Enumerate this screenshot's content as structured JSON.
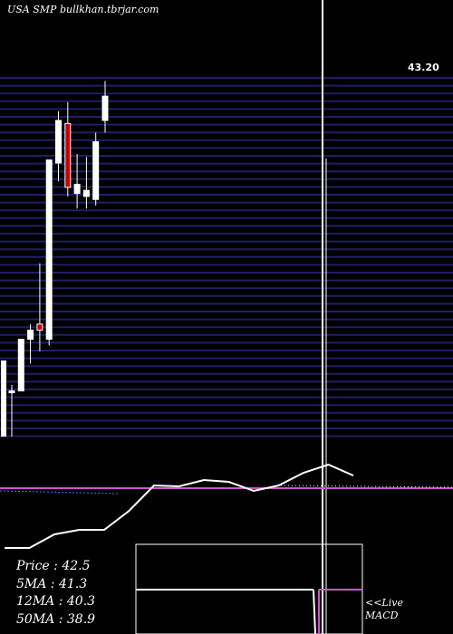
{
  "watermark": "USA SMP bullkhan.tbrjar.com",
  "top_price_label": "43.20",
  "chart_data": {
    "type": "candlestick",
    "ylim": [
      31.5,
      43.3
    ],
    "candles": [
      {
        "open": 33.0,
        "high": 33.2,
        "low": 31.5,
        "close": 33.0
      },
      {
        "open": 33.0,
        "high": 34.7,
        "low": 33.0,
        "close": 34.7
      },
      {
        "open": 34.7,
        "high": 35.2,
        "low": 33.9,
        "close": 35.0
      },
      {
        "open": 35.2,
        "high": 37.2,
        "low": 34.3,
        "close": 35.0
      },
      {
        "open": 34.7,
        "high": 40.6,
        "low": 34.5,
        "close": 40.6
      },
      {
        "open": 40.5,
        "high": 42.2,
        "low": 39.9,
        "close": 41.9
      },
      {
        "open": 41.8,
        "high": 42.5,
        "low": 39.4,
        "close": 39.7
      },
      {
        "open": 39.5,
        "high": 40.8,
        "low": 39.0,
        "close": 39.8
      },
      {
        "open": 39.4,
        "high": 40.7,
        "low": 39.0,
        "close": 39.6
      },
      {
        "open": 39.3,
        "high": 41.5,
        "low": 39.1,
        "close": 41.2
      },
      {
        "open": 41.9,
        "high": 43.2,
        "low": 41.5,
        "close": 42.7
      }
    ],
    "indicator_line": [
      0.5,
      0.5,
      2.0,
      2.5,
      2.5,
      4.6,
      7.4,
      7.3,
      8.0,
      7.8,
      6.8,
      7.4,
      8.8,
      9.7,
      8.5
    ]
  },
  "stats": {
    "price_label": "Price   :",
    "price_value": "42.5",
    "ma5_label": "5MA :",
    "ma5_value": "41.3",
    "ma12_label": "12MA :",
    "ma12_value": "40.3",
    "ma50_label": "50MA :",
    "ma50_value": "38.9"
  },
  "live_label": "<<Live",
  "macd_label": "MACD",
  "colors": {
    "bull": "#ffffff",
    "bear": "#cc0000",
    "grid": "#1f1f66",
    "ma": "#cc55cc",
    "indicator": "#ffffff"
  }
}
